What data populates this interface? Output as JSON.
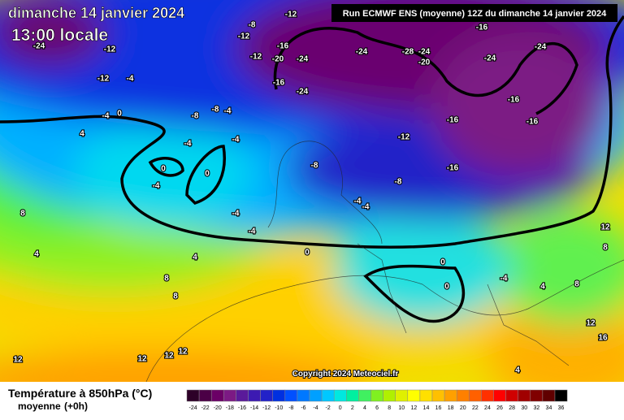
{
  "header": {
    "date": "dimanche 14 janvier 2024",
    "time": "13:00 locale",
    "run": "Run ECMWF ENS (moyenne) 12Z du dimanche 14 janvier 2024",
    "copyright": "Copyright 2024 Meteociel.fr"
  },
  "map": {
    "labels": [
      "-24",
      "-12",
      "-12",
      "-4",
      "-12",
      "-8",
      "-12",
      "-16",
      "-20",
      "-24",
      "-16",
      "-24",
      "-12",
      "-24",
      "-28",
      "-24",
      "-20",
      "-16",
      "-24",
      "-24",
      "-16",
      "-16",
      "-16",
      "-12",
      "-16",
      "-8",
      "-8",
      "-4",
      "0",
      "-4",
      "0",
      "-4",
      "-4",
      "-4",
      "-8",
      "-8",
      "-4",
      "-4",
      "0",
      "4",
      "8",
      "4",
      "4",
      "0",
      "0",
      "0",
      "-4",
      "4",
      "8",
      "8",
      "12",
      "12",
      "16",
      "8",
      "8",
      "12",
      "12",
      "12",
      "12",
      "4",
      "-4",
      "-4"
    ]
  },
  "legend": {
    "title": "Température à 850hPa (°C)",
    "subtitle": "moyenne",
    "step": "(+0h)",
    "ticks": [
      -24,
      -22,
      -20,
      -18,
      -16,
      -14,
      -12,
      -10,
      -8,
      -6,
      -4,
      -2,
      0,
      2,
      4,
      6,
      8,
      10,
      12,
      14,
      16,
      18,
      20,
      22,
      24,
      26,
      28,
      30,
      32,
      34,
      36
    ],
    "colors": [
      "#2d0028",
      "#4b0046",
      "#6b0066",
      "#7c1a84",
      "#5a1a9a",
      "#3c1ab2",
      "#2222c8",
      "#0030e0",
      "#0050ff",
      "#0078ff",
      "#00a0ff",
      "#00c8ff",
      "#00e8e0",
      "#00f0a0",
      "#40f060",
      "#80f020",
      "#b0f000",
      "#e0f000",
      "#ffff00",
      "#ffe000",
      "#ffc000",
      "#ffa000",
      "#ff8000",
      "#ff6000",
      "#ff3000",
      "#ff0000",
      "#d00000",
      "#a00000",
      "#800000",
      "#600000",
      "#000000"
    ]
  }
}
